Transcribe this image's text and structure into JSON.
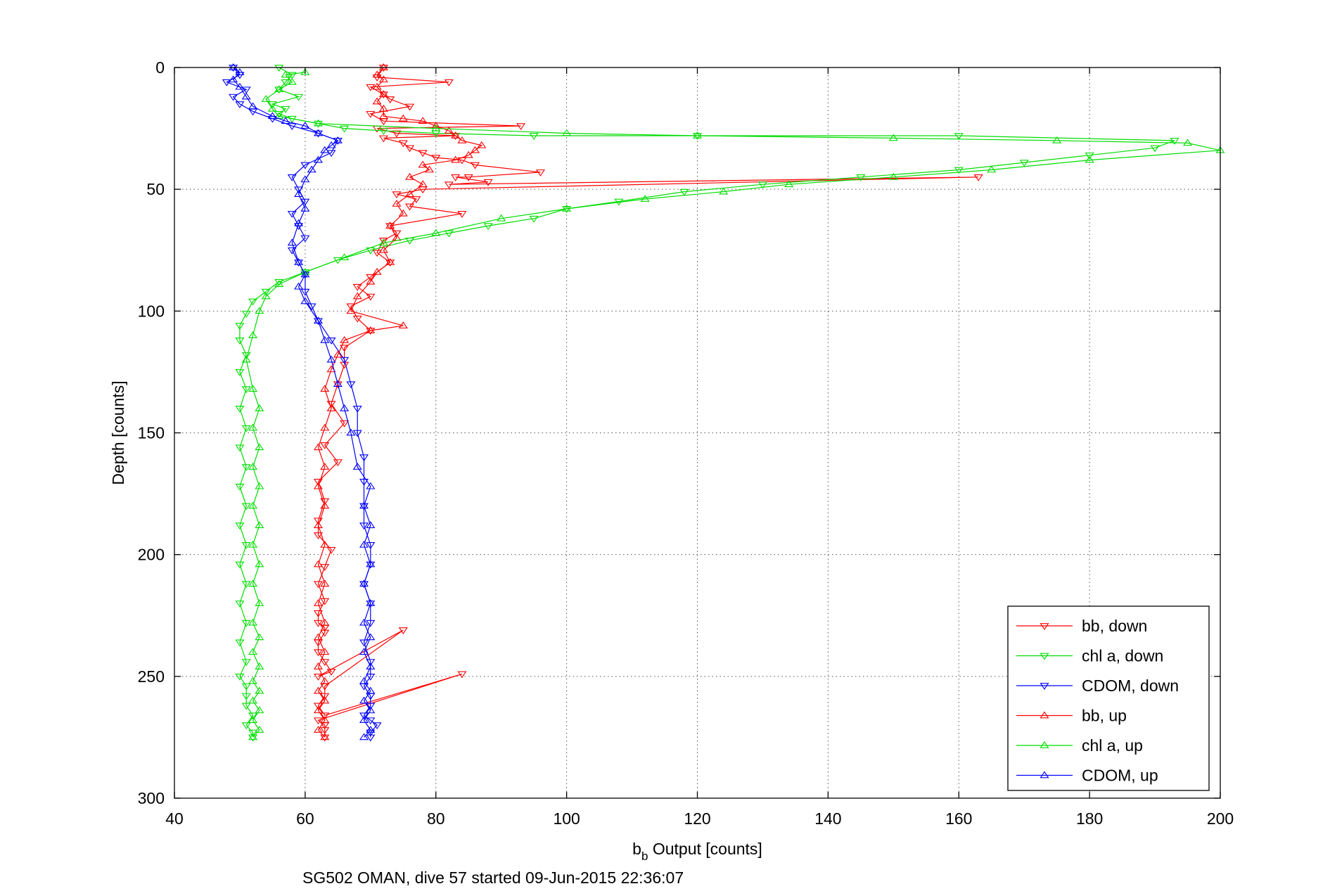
{
  "chart_data": {
    "type": "line",
    "xlabel_main": "b",
    "xlabel_sub": "b",
    "xlabel_rest": " Output [counts]",
    "ylabel": "Depth [counts]",
    "caption": "SG502 OMAN, dive 57 started 09-Jun-2015 22:36:07",
    "xlim": [
      40,
      200
    ],
    "ylim": [
      0,
      300
    ],
    "y_reversed": true,
    "xticks": [
      40,
      60,
      80,
      100,
      120,
      140,
      160,
      180,
      200
    ],
    "yticks": [
      0,
      50,
      100,
      150,
      200,
      250,
      300
    ],
    "xtick_labels": [
      "40",
      "60",
      "80",
      "100",
      "120",
      "140",
      "160",
      "180",
      "200"
    ],
    "ytick_labels": [
      "0",
      "50",
      "100",
      "150",
      "200",
      "250",
      "300"
    ],
    "grid": true,
    "legend_position": "bottom-right",
    "series": [
      {
        "name": "bb, down",
        "color": "#ff0000",
        "marker": "triangle-down",
        "x": [
          72,
          71,
          82,
          70,
          72,
          73,
          76,
          70,
          72,
          93,
          71,
          74,
          83,
          72,
          75,
          76,
          78,
          80,
          84,
          86,
          96,
          85,
          83,
          88,
          82,
          163,
          78,
          74,
          77,
          76,
          84,
          73,
          74,
          72,
          71,
          73,
          70,
          68,
          70,
          67,
          68,
          70,
          66,
          66,
          65,
          64,
          66,
          63,
          65,
          62,
          63,
          62,
          62,
          64,
          63,
          62,
          63,
          62,
          62,
          63,
          63,
          62,
          62,
          63,
          64,
          62,
          75,
          63,
          63,
          62,
          63,
          84,
          62,
          63,
          63,
          63
        ],
        "y": [
          0,
          4,
          6,
          8,
          11,
          13,
          16,
          19,
          22,
          24,
          25,
          27,
          28,
          29,
          31,
          33,
          35,
          37,
          38,
          40,
          43,
          45,
          45,
          47,
          48,
          45,
          50,
          52,
          54,
          57,
          60,
          65,
          68,
          71,
          76,
          80,
          86,
          90,
          94,
          98,
          103,
          108,
          115,
          122,
          130,
          138,
          146,
          155,
          162,
          170,
          178,
          186,
          192,
          198,
          205,
          212,
          219,
          224,
          228,
          230,
          232,
          236,
          240,
          244,
          248,
          250,
          231,
          254,
          258,
          262,
          266,
          249,
          268,
          270,
          272,
          275
        ]
      },
      {
        "name": "chl a, down",
        "color": "#00dd00",
        "marker": "triangle-down",
        "x": [
          56,
          58,
          57,
          56,
          59,
          55,
          57,
          56,
          58,
          62,
          66,
          72,
          80,
          95,
          120,
          160,
          193,
          190,
          180,
          170,
          160,
          145,
          130,
          118,
          108,
          100,
          95,
          88,
          82,
          76,
          70,
          65,
          60,
          56,
          54,
          52,
          51,
          50,
          50,
          51,
          50,
          51,
          50,
          51,
          50,
          51,
          50,
          51,
          50,
          51,
          50,
          51,
          50,
          51,
          50,
          51,
          50,
          51,
          51,
          51,
          52,
          51,
          52,
          52
        ],
        "y": [
          0,
          3,
          6,
          9,
          12,
          15,
          17,
          19,
          21,
          23,
          25,
          26,
          27,
          28,
          28,
          28,
          30,
          33,
          36,
          39,
          42,
          45,
          48,
          51,
          55,
          58,
          62,
          65,
          68,
          71,
          75,
          79,
          84,
          88,
          92,
          96,
          101,
          106,
          112,
          118,
          125,
          132,
          140,
          148,
          156,
          164,
          172,
          180,
          188,
          196,
          204,
          212,
          220,
          228,
          236,
          244,
          250,
          254,
          258,
          262,
          266,
          270,
          273,
          275
        ]
      },
      {
        "name": "CDOM, down",
        "color": "#0000ff",
        "marker": "triangle-down",
        "x": [
          49,
          50,
          48,
          51,
          49,
          50,
          52,
          55,
          58,
          62,
          65,
          64,
          60,
          58,
          59,
          60,
          58,
          59,
          60,
          58,
          59,
          60,
          60,
          61,
          62,
          64,
          66,
          67,
          68,
          68,
          69,
          69,
          69,
          69,
          70,
          70,
          69,
          70,
          70,
          69,
          70,
          70,
          69,
          70,
          70,
          69,
          70,
          71,
          70,
          70
        ],
        "y": [
          0,
          3,
          6,
          9,
          12,
          15,
          18,
          21,
          24,
          27,
          30,
          35,
          40,
          45,
          50,
          55,
          60,
          65,
          70,
          75,
          80,
          85,
          92,
          98,
          104,
          112,
          120,
          130,
          140,
          150,
          160,
          170,
          180,
          188,
          196,
          204,
          212,
          220,
          228,
          236,
          244,
          250,
          254,
          258,
          262,
          266,
          268,
          270,
          273,
          275
        ]
      },
      {
        "name": "bb, up",
        "color": "#ff0000",
        "marker": "triangle-up",
        "x": [
          63,
          62,
          63,
          62,
          63,
          62,
          63,
          62,
          63,
          62,
          63,
          62,
          63,
          62,
          63,
          62,
          63,
          62,
          63,
          62,
          63,
          64,
          63,
          64,
          65,
          66,
          70,
          75,
          67,
          68,
          70,
          71,
          73,
          72,
          74,
          73,
          75,
          74,
          76,
          78,
          76,
          79,
          78,
          83,
          85,
          86,
          87,
          84,
          83,
          82,
          80,
          78,
          75,
          72,
          72,
          71,
          72,
          71,
          72,
          71,
          72
        ],
        "y": [
          275,
          272,
          268,
          264,
          260,
          256,
          252,
          246,
          240,
          234,
          228,
          220,
          212,
          204,
          196,
          188,
          180,
          172,
          164,
          156,
          148,
          140,
          132,
          124,
          118,
          112,
          108,
          106,
          100,
          94,
          88,
          84,
          80,
          75,
          70,
          65,
          60,
          56,
          52,
          48,
          45,
          42,
          40,
          38,
          36,
          34,
          32,
          30,
          28,
          26,
          24,
          22,
          21,
          20,
          17,
          14,
          11,
          8,
          5,
          3,
          0
        ]
      },
      {
        "name": "chl a, up",
        "color": "#00dd00",
        "marker": "triangle-up",
        "x": [
          52,
          53,
          52,
          53,
          52,
          53,
          52,
          53,
          52,
          53,
          52,
          53,
          52,
          53,
          52,
          53,
          52,
          53,
          52,
          53,
          52,
          53,
          52,
          51,
          52,
          53,
          54,
          56,
          60,
          66,
          72,
          80,
          90,
          100,
          112,
          124,
          134,
          150,
          165,
          180,
          200,
          195,
          175,
          150,
          120,
          100,
          80,
          62,
          56,
          55,
          54,
          56,
          58,
          57,
          60
        ],
        "y": [
          275,
          272,
          268,
          264,
          260,
          256,
          252,
          246,
          240,
          234,
          228,
          220,
          212,
          204,
          196,
          188,
          180,
          172,
          164,
          156,
          148,
          140,
          132,
          120,
          110,
          100,
          94,
          89,
          84,
          78,
          72,
          68,
          62,
          58,
          54,
          51,
          48,
          45,
          42,
          38,
          34,
          31,
          30,
          29,
          28,
          27,
          25,
          23,
          20,
          17,
          13,
          9,
          6,
          3,
          2
        ]
      },
      {
        "name": "CDOM, up",
        "color": "#0000ff",
        "marker": "triangle-up",
        "x": [
          69,
          70,
          69,
          70,
          69,
          70,
          69,
          70,
          69,
          70,
          69,
          70,
          69,
          70,
          69,
          70,
          69,
          70,
          68,
          67,
          66,
          65,
          64,
          63,
          62,
          60,
          59,
          60,
          59,
          58,
          59,
          60,
          59,
          60,
          61,
          62,
          63,
          64,
          65,
          62,
          60,
          57,
          55,
          52,
          51,
          50,
          49,
          50,
          49
        ],
        "y": [
          275,
          272,
          268,
          264,
          260,
          256,
          252,
          246,
          240,
          234,
          228,
          220,
          212,
          204,
          196,
          188,
          180,
          172,
          164,
          150,
          140,
          130,
          120,
          112,
          104,
          96,
          90,
          85,
          80,
          72,
          64,
          58,
          52,
          46,
          42,
          38,
          34,
          32,
          30,
          27,
          24,
          22,
          20,
          16,
          12,
          8,
          5,
          2,
          0
        ]
      }
    ]
  }
}
